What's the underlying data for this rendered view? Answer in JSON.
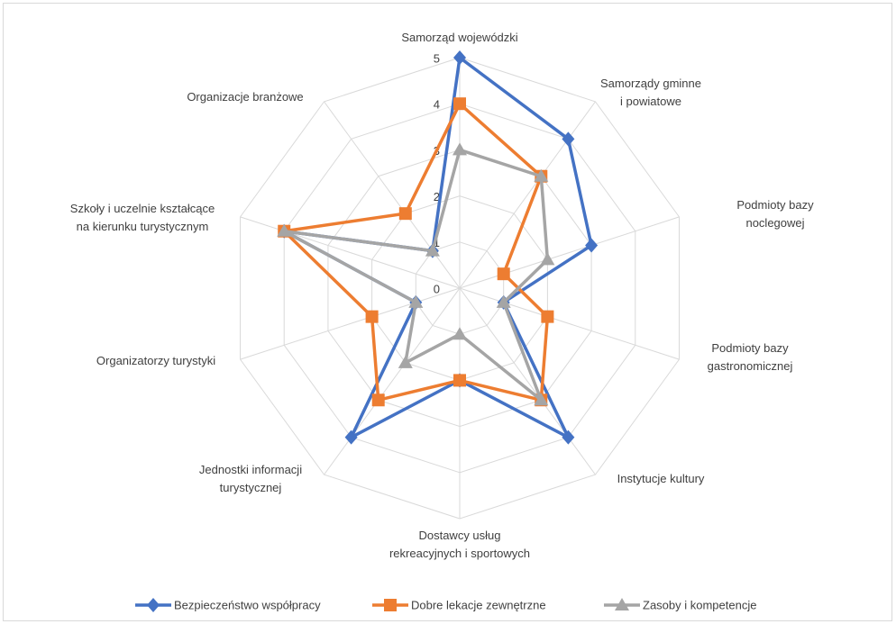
{
  "chart_data": {
    "type": "radar",
    "categories": [
      "Samorząd wojewódzki",
      "Samorządy gminne\ni  powiatowe",
      "Podmioty bazy noclegowej",
      "Podmioty bazy\ngastronomicznej",
      "Instytucje kultury",
      "Dostawcy usług\nrekreacyjnych i sportowych",
      "Jednostki informacji\nturystycznej",
      "Organizatorzy turystyki",
      "Szkoły i uczelnie kształcące\nna kierunku turystycznym",
      "Organizacje branżowe"
    ],
    "series": [
      {
        "name": "Bezpieczeństwo współpracy",
        "color": "#4472c4",
        "marker": "diamond",
        "values": [
          5,
          4,
          3,
          1,
          4,
          2,
          4,
          1,
          4,
          1
        ]
      },
      {
        "name": "Dobre lekacje zewnętrzne",
        "color": "#ed7d31",
        "marker": "square",
        "values": [
          4,
          3,
          1,
          2,
          3,
          2,
          3,
          2,
          4,
          2
        ]
      },
      {
        "name": "Zasoby i kompetencje",
        "color": "#a5a5a5",
        "marker": "triangle",
        "values": [
          3,
          3,
          2,
          1,
          3,
          1,
          2,
          1,
          4,
          1
        ]
      }
    ],
    "rlim": [
      0,
      5
    ],
    "rticks": [
      0,
      1,
      2,
      3,
      4,
      5
    ],
    "grid": true,
    "legend": "bottom"
  }
}
